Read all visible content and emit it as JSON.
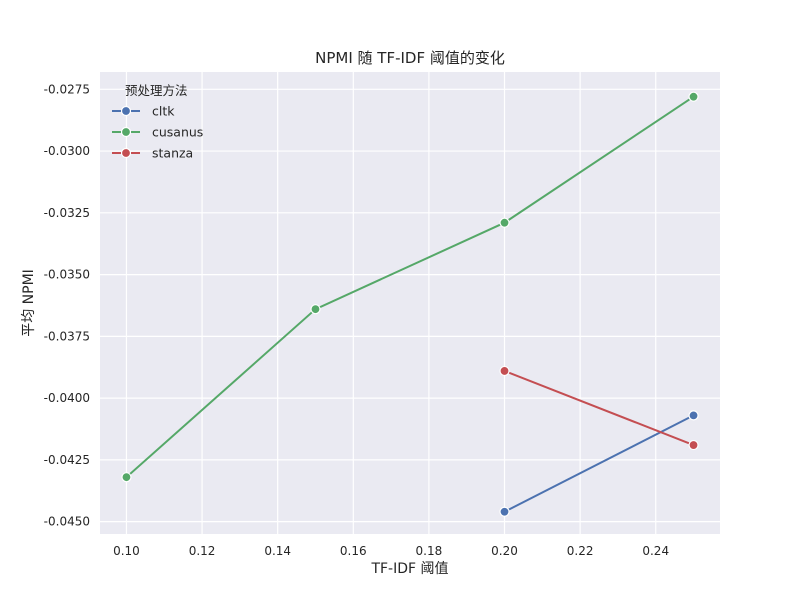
{
  "chart_data": {
    "type": "line",
    "title": "NPMI 随 TF-IDF 阈值的变化",
    "xlabel": "TF-IDF 阈值",
    "ylabel": "平均 NPMI",
    "xlim": [
      0.093,
      0.257
    ],
    "ylim": [
      -0.0455,
      -0.0268
    ],
    "xticks": [
      0.1,
      0.12,
      0.14,
      0.16,
      0.18,
      0.2,
      0.22,
      0.24
    ],
    "xtick_labels": [
      "0.10",
      "0.12",
      "0.14",
      "0.16",
      "0.18",
      "0.20",
      "0.22",
      "0.24"
    ],
    "yticks": [
      -0.0275,
      -0.03,
      -0.0325,
      -0.035,
      -0.0375,
      -0.04,
      -0.0425,
      -0.045
    ],
    "ytick_labels": [
      "-0.0275",
      "-0.0300",
      "-0.0325",
      "-0.0350",
      "-0.0375",
      "-0.0400",
      "-0.0425",
      "-0.0450"
    ],
    "grid": true,
    "legend": {
      "title": "预处理方法",
      "placement": "top-left"
    },
    "series": [
      {
        "name": "cltk",
        "color": "#4c72b0",
        "x": [
          0.2,
          0.25
        ],
        "y": [
          -0.0446,
          -0.0407
        ]
      },
      {
        "name": "cusanus",
        "color": "#55a868",
        "x": [
          0.1,
          0.15,
          0.2,
          0.25
        ],
        "y": [
          -0.0432,
          -0.0364,
          -0.0329,
          -0.0278
        ]
      },
      {
        "name": "stanza",
        "color": "#c44e52",
        "x": [
          0.2,
          0.25
        ],
        "y": [
          -0.0389,
          -0.0419
        ]
      }
    ]
  }
}
